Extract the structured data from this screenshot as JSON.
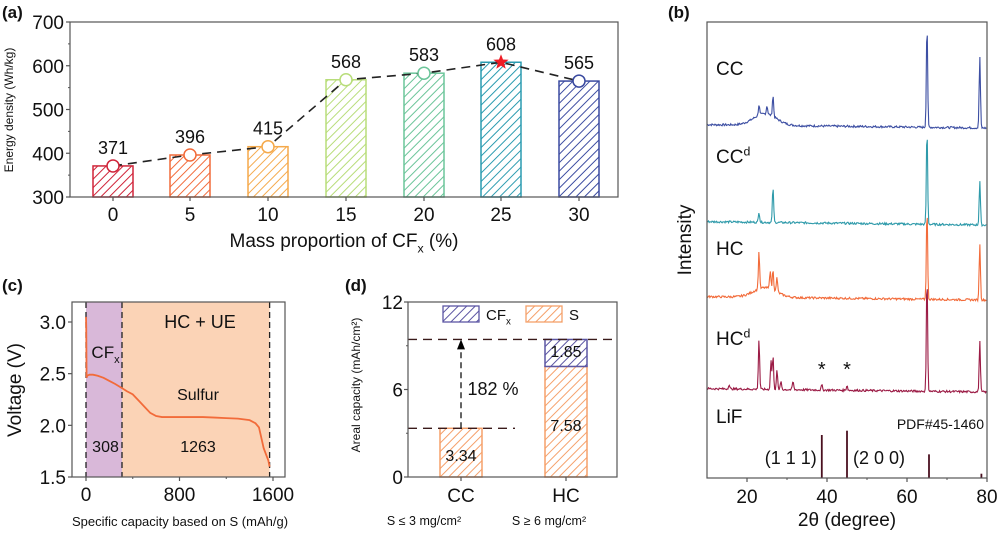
{
  "chart_data": [
    {
      "panel": "(a)",
      "type": "bar",
      "title": "",
      "xlabel": "Mass proportion of CF",
      "xlabel_sub": "x",
      "xlabel_suffix": " (%)",
      "ylabel": "Energy density (Wh/kg)",
      "ylim": [
        300,
        700
      ],
      "yticks": [
        300,
        400,
        500,
        600,
        700
      ],
      "categories": [
        "0",
        "5",
        "10",
        "15",
        "20",
        "25",
        "30"
      ],
      "values": [
        371,
        396,
        415,
        568,
        583,
        608,
        565
      ],
      "data_labels": [
        "371",
        "396",
        "415",
        "568",
        "583",
        "608",
        "565"
      ],
      "bar_colors": [
        "#d0253a",
        "#f26b3a",
        "#f5a94a",
        "#b8dd7a",
        "#6cc59a",
        "#2a9bb0",
        "#3a4aa0"
      ],
      "highlight_index": 5,
      "highlight_marker": "star",
      "highlight_color": "#ee1c25",
      "line_style": "dashed",
      "fill": "hatched"
    },
    {
      "panel": "(b)",
      "type": "line",
      "xlabel": "2θ (degree)",
      "ylabel": "Intensity",
      "xlim": [
        10,
        80
      ],
      "xticks": [
        20,
        40,
        60,
        80
      ],
      "series": [
        {
          "name": "CC",
          "sup": "",
          "color": "#3d4fa3",
          "peaks": [
            [
              23,
              0.25
            ],
            [
              25,
              0.2
            ],
            [
              26.5,
              0.5
            ],
            [
              65,
              2.5
            ],
            [
              78.2,
              1.7
            ]
          ],
          "baseline": "hump-20-28"
        },
        {
          "name": "CC",
          "sup": "d",
          "color": "#2e9aaa",
          "peaks": [
            [
              23,
              0.25
            ],
            [
              26.5,
              0.85
            ],
            [
              65,
              2.3
            ],
            [
              78.2,
              1.05
            ]
          ],
          "baseline": "flat"
        },
        {
          "name": "HC",
          "sup": "",
          "color": "#f26b3a",
          "peaks": [
            [
              23,
              0.9
            ],
            [
              25.8,
              0.45
            ],
            [
              26.5,
              0.5
            ],
            [
              27.5,
              0.35
            ],
            [
              65,
              2.2
            ],
            [
              78.2,
              1.35
            ]
          ],
          "baseline": "hump-20-28"
        },
        {
          "name": "HC",
          "sup": "d",
          "color": "#9b1b45",
          "peaks": [
            [
              15.5,
              0.1
            ],
            [
              23,
              1.2
            ],
            [
              26,
              0.7
            ],
            [
              26.5,
              0.8
            ],
            [
              27.5,
              0.45
            ],
            [
              28.5,
              0.2
            ],
            [
              31.5,
              0.2
            ],
            [
              38.7,
              0.12
            ],
            [
              45,
              0.12
            ],
            [
              65,
              2.8
            ],
            [
              78.2,
              1.2
            ]
          ],
          "baseline": "flat"
        }
      ],
      "annotations": [
        "*",
        "*"
      ],
      "annotation_x": [
        38.7,
        45
      ],
      "reference": {
        "name": "LiF",
        "pdf": "PDF#45-1460",
        "lines": [
          [
            38.7,
            1.0
          ],
          [
            45.0,
            1.1
          ],
          [
            65.5,
            0.55
          ],
          [
            78.6,
            0.1
          ]
        ],
        "labels": [
          "(1 1 1)",
          "(2 0 0)"
        ],
        "color": "#4a1020"
      }
    },
    {
      "panel": "(c)",
      "type": "line",
      "xlabel": "Specific capacity based on S (mAh/g)",
      "ylabel": "Voltage (V)",
      "xlim": [
        -100,
        1800
      ],
      "ylim": [
        1.5,
        3.2
      ],
      "xticks": [
        0,
        800,
        1600
      ],
      "yticks": [
        1.5,
        2.0,
        2.5,
        3.0
      ],
      "regions": [
        {
          "label": "CF",
          "label_sub": "x",
          "from": 0,
          "to": 308,
          "value_label": "308",
          "color": "#d9b8d9"
        },
        {
          "label": "Sulfur",
          "from": 308,
          "to": 1571,
          "value_label": "1263",
          "color": "#fbd3b6"
        }
      ],
      "region_title": "HC + UE",
      "series": [
        {
          "name": "discharge",
          "color": "#f26b3a",
          "x": [
            0,
            2,
            5,
            10,
            30,
            60,
            100,
            150,
            200,
            250,
            308,
            350,
            400,
            450,
            500,
            550,
            600,
            650,
            700,
            800,
            900,
            1000,
            1100,
            1200,
            1300,
            1400,
            1450,
            1480,
            1500,
            1520,
            1540,
            1560,
            1571
          ],
          "y": [
            3.05,
            2.95,
            2.46,
            2.48,
            2.49,
            2.49,
            2.48,
            2.46,
            2.43,
            2.4,
            2.36,
            2.33,
            2.3,
            2.24,
            2.18,
            2.12,
            2.09,
            2.08,
            2.08,
            2.08,
            2.08,
            2.08,
            2.075,
            2.07,
            2.065,
            2.05,
            2.02,
            1.98,
            1.88,
            1.78,
            1.72,
            1.66,
            1.6
          ]
        }
      ]
    },
    {
      "panel": "(d)",
      "type": "bar",
      "stacked": true,
      "xlabel": "",
      "ylabel": "Areal capacity (mAh/cm²)",
      "ylim": [
        0,
        12
      ],
      "yticks": [
        0,
        6,
        12
      ],
      "categories": [
        "CC",
        "HC"
      ],
      "category_sublabels": [
        "S ≤ 3 mg/cm²",
        "S ≥ 6 mg/cm²"
      ],
      "series": [
        {
          "name": "S",
          "color": "#f5a06a",
          "values": [
            3.34,
            7.58
          ],
          "data_labels": [
            "3.34",
            "7.58"
          ]
        },
        {
          "name": "CF",
          "name_sub": "x",
          "color": "#5c56a3",
          "values": [
            0,
            1.85
          ],
          "data_labels": [
            "",
            "1.85"
          ]
        }
      ],
      "annotation": "182 %",
      "legend": "top"
    }
  ]
}
